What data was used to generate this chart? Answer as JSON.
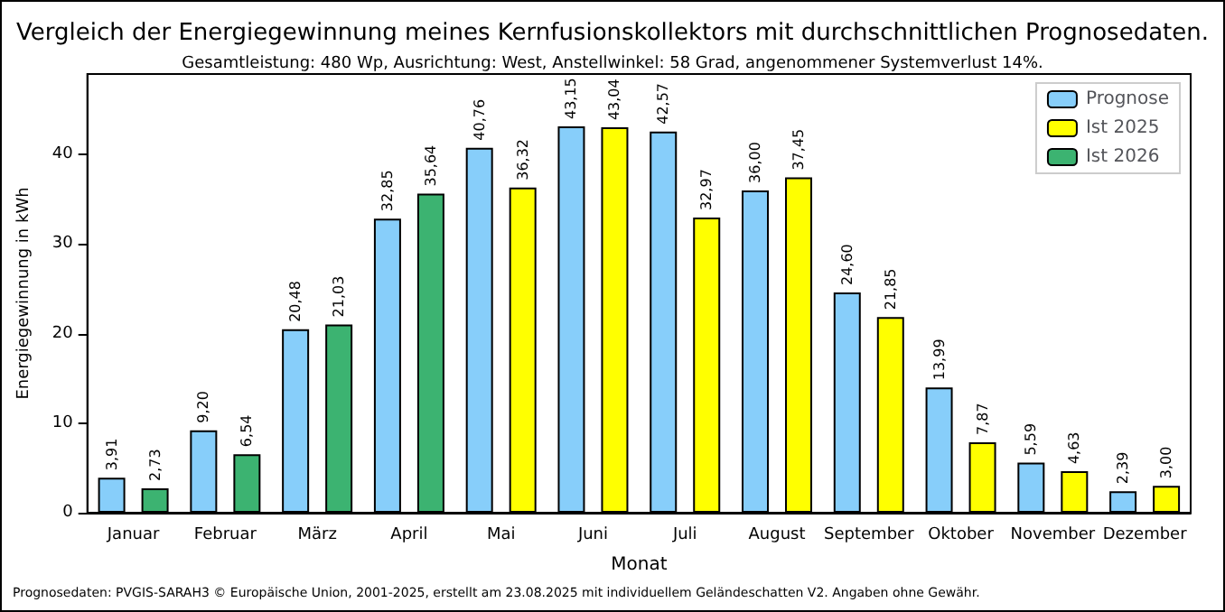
{
  "chart_data": {
    "type": "bar",
    "title": "Vergleich der Energiegewinnung meines Kernfusionskollektors mit durchschnittlichen Prognosedaten.",
    "subtitle": "Gesamtleistung: 480 Wp, Ausrichtung: West, Anstellwinkel: 58 Grad, angenommener Systemverlust 14%.",
    "xlabel": "Monat",
    "ylabel": "Energiegewinnung in kWh",
    "annotations": [
      "Prognosedaten: PVGIS-SARAH3 © Europäische Union, 2001-2025, erstellt am 23.08.2025 mit individuellem Geländeschatten V2. Angaben ohne Gewähr."
    ],
    "categories": [
      "Januar",
      "Februar",
      "März",
      "April",
      "Mai",
      "Juni",
      "Juli",
      "August",
      "September",
      "Oktober",
      "November",
      "Dezember"
    ],
    "series": [
      {
        "name": "Prognose",
        "color": "#87cefa",
        "values": [
          3.91,
          9.2,
          20.48,
          32.85,
          40.76,
          43.15,
          42.57,
          36.0,
          24.6,
          13.99,
          5.59,
          2.39
        ],
        "value_labels": [
          "3,91",
          "9,20",
          "20,48",
          "32,85",
          "40,76",
          "43,15",
          "42,57",
          "36,00",
          "24,60",
          "13,99",
          "5,59",
          "2,39"
        ]
      },
      {
        "name": "Ist 2025",
        "color": "#ffff00",
        "values": [
          null,
          null,
          null,
          null,
          36.32,
          43.04,
          32.97,
          37.45,
          21.85,
          7.87,
          4.63,
          3.0
        ],
        "value_labels": [
          null,
          null,
          null,
          null,
          "36,32",
          "43,04",
          "32,97",
          "37,45",
          "21,85",
          "7,87",
          "4,63",
          "3,00"
        ]
      },
      {
        "name": "Ist 2026",
        "color": "#3cb371",
        "values": [
          2.73,
          6.54,
          21.03,
          35.64,
          null,
          null,
          null,
          null,
          null,
          null,
          null,
          null
        ],
        "value_labels": [
          "2,73",
          "6,54",
          "21,03",
          "35,64",
          null,
          null,
          null,
          null,
          null,
          null,
          null,
          null
        ]
      }
    ],
    "ylim": [
      0,
      49
    ],
    "yticks": [
      0,
      10,
      20,
      30,
      40
    ],
    "grid": false,
    "legend": "top right"
  }
}
